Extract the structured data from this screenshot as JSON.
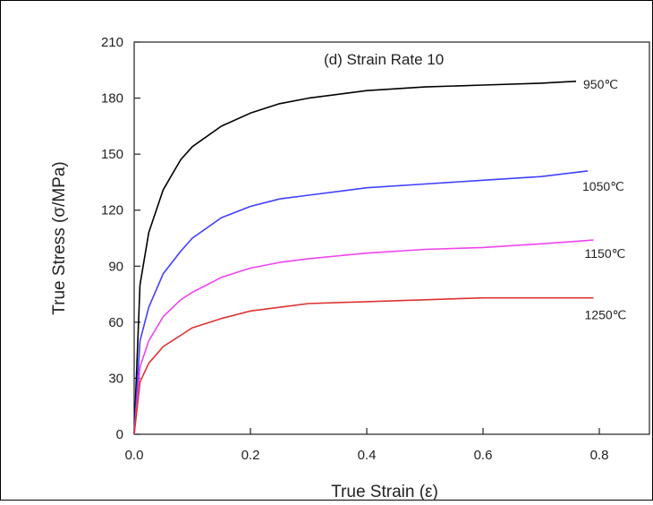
{
  "chart_data": {
    "type": "line",
    "title": "(d) Strain Rate 10",
    "xlabel": "True Strain (ε)",
    "ylabel": "True Stress (σ/MPa)",
    "xlim": [
      0.0,
      0.9
    ],
    "ylim": [
      0,
      210
    ],
    "xticks": [
      "0.0",
      "0.2",
      "0.4",
      "0.6",
      "0.8"
    ],
    "xtick_values": [
      0.0,
      0.2,
      0.4,
      0.6,
      0.8
    ],
    "yticks": [
      "0",
      "30",
      "60",
      "90",
      "120",
      "150",
      "180",
      "210"
    ],
    "ytick_values": [
      0,
      30,
      60,
      90,
      120,
      150,
      180,
      210
    ],
    "grid": false,
    "series": [
      {
        "name": "950℃",
        "color": "#000000",
        "x": [
          0.0,
          0.01,
          0.025,
          0.05,
          0.08,
          0.1,
          0.15,
          0.2,
          0.25,
          0.3,
          0.4,
          0.5,
          0.6,
          0.7,
          0.76
        ],
        "y": [
          0,
          80,
          108,
          131,
          147,
          154,
          165,
          172,
          177,
          180,
          184,
          186,
          187,
          188,
          189
        ]
      },
      {
        "name": "1050℃",
        "color": "#4040ff",
        "x": [
          0.0,
          0.01,
          0.025,
          0.05,
          0.08,
          0.1,
          0.15,
          0.2,
          0.25,
          0.3,
          0.4,
          0.5,
          0.6,
          0.7,
          0.78
        ],
        "y": [
          0,
          50,
          68,
          86,
          98,
          105,
          116,
          122,
          126,
          128,
          132,
          134,
          136,
          138,
          141
        ]
      },
      {
        "name": "1150℃",
        "color": "#ee44ee",
        "x": [
          0.0,
          0.01,
          0.025,
          0.05,
          0.08,
          0.1,
          0.15,
          0.2,
          0.25,
          0.3,
          0.4,
          0.5,
          0.6,
          0.7,
          0.79
        ],
        "y": [
          0,
          36,
          50,
          63,
          72,
          76,
          84,
          89,
          92,
          94,
          97,
          99,
          100,
          102,
          104
        ]
      },
      {
        "name": "1250℃",
        "color": "#dd3333",
        "x": [
          0.0,
          0.01,
          0.025,
          0.05,
          0.08,
          0.1,
          0.15,
          0.2,
          0.25,
          0.3,
          0.4,
          0.5,
          0.6,
          0.7,
          0.79
        ],
        "y": [
          0,
          28,
          38,
          47,
          53,
          57,
          62,
          66,
          68,
          70,
          71,
          72,
          73,
          73,
          73
        ]
      }
    ],
    "annotations": [
      "950℃",
      "1050℃",
      "1150℃",
      "1250℃"
    ]
  }
}
